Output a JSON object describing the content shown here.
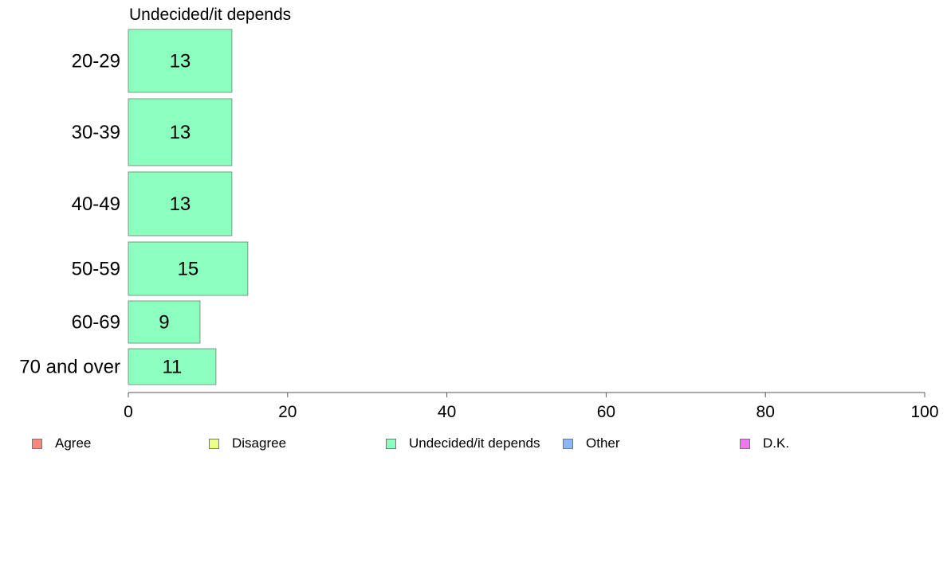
{
  "chart_data": {
    "type": "bar",
    "orientation": "horizontal",
    "title": "Undecided/it depends",
    "categories": [
      "20-29",
      "30-39",
      "40-49",
      "50-59",
      "60-69",
      "70 and over"
    ],
    "series": [
      {
        "name": "Undecided/it depends",
        "values": [
          13,
          13,
          13,
          15,
          9,
          11
        ],
        "color": "#8bffbd"
      }
    ],
    "data_labels": [
      "13",
      "13",
      "13",
      "15",
      "9",
      "11"
    ],
    "xlim": [
      0,
      100
    ],
    "xticks": [
      0,
      20,
      40,
      60,
      80,
      100
    ],
    "grid": false,
    "legend": {
      "placement": "bottom",
      "entries": [
        {
          "label": "Agree",
          "color": "#f8877f"
        },
        {
          "label": "Disagree",
          "color": "#eeff88"
        },
        {
          "label": "Undecided/it depends",
          "color": "#8bffbd"
        },
        {
          "label": "Other",
          "color": "#88b8f8"
        },
        {
          "label": "D.K.",
          "color": "#ee77ee"
        }
      ]
    }
  }
}
